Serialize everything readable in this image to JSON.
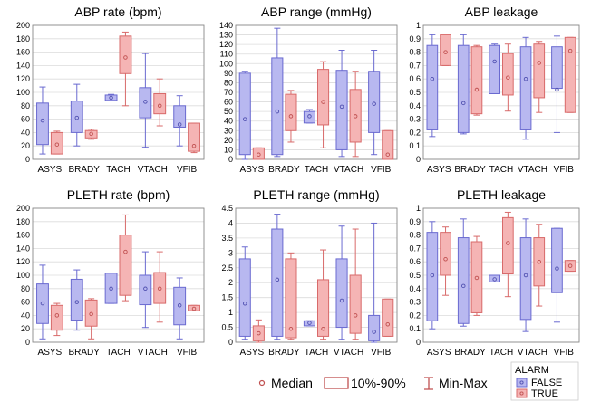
{
  "colors": {
    "false_fill": "#b8b8f0",
    "false_stroke": "#6a6ad0",
    "true_fill": "#f5b4b4",
    "true_stroke": "#d86a6a",
    "grid": "#dcdcdc",
    "axis": "#888888"
  },
  "legend": {
    "median_label": "Median",
    "range_label": "10%-90%",
    "minmax_label": "Min-Max",
    "alarm_title": "ALARM",
    "false_label": "FALSE",
    "true_label": "TRUE"
  },
  "chart_data": [
    {
      "type": "box",
      "title": "ABP rate (bpm)",
      "categories": [
        "ASYS",
        "BRADY",
        "TACH",
        "VTACH",
        "VFIB"
      ],
      "ylim": [
        0,
        200
      ],
      "yticks": [
        0,
        20,
        40,
        60,
        80,
        100,
        120,
        140,
        160,
        180,
        200
      ],
      "series": [
        {
          "name": "FALSE",
          "boxes": [
            {
              "min": 8,
              "p10": 22,
              "median": 58,
              "p90": 84,
              "max": 108
            },
            {
              "min": 20,
              "p10": 40,
              "median": 62,
              "p90": 87,
              "max": 112
            },
            {
              "min": 88,
              "p10": 88,
              "median": 92,
              "p90": 96,
              "max": 97
            },
            {
              "min": 18,
              "p10": 62,
              "median": 86,
              "p90": 107,
              "max": 158
            },
            {
              "min": 20,
              "p10": 48,
              "median": 52,
              "p90": 80,
              "max": 95
            }
          ]
        },
        {
          "name": "TRUE",
          "boxes": [
            {
              "min": 8,
              "p10": 8,
              "median": 22,
              "p90": 40,
              "max": 42
            },
            {
              "min": 30,
              "p10": 32,
              "median": 38,
              "p90": 43,
              "max": 45
            },
            {
              "min": 80,
              "p10": 128,
              "median": 152,
              "p90": 184,
              "max": 190
            },
            {
              "min": 50,
              "p10": 68,
              "median": 80,
              "p90": 98,
              "max": 120
            },
            {
              "min": 10,
              "p10": 12,
              "median": 20,
              "p90": 54,
              "max": 54
            }
          ]
        }
      ]
    },
    {
      "type": "box",
      "title": "ABP range (mmHg)",
      "categories": [
        "ASYS",
        "BRADY",
        "TACH",
        "VTACH",
        "VFIB"
      ],
      "ylim": [
        0,
        140
      ],
      "yticks": [
        0,
        10,
        20,
        30,
        40,
        50,
        60,
        70,
        80,
        90,
        100,
        110,
        120,
        130,
        140
      ],
      "series": [
        {
          "name": "FALSE",
          "boxes": [
            {
              "min": 0,
              "p10": 5,
              "median": 42,
              "p90": 90,
              "max": 92
            },
            {
              "min": 3,
              "p10": 5,
              "median": 50,
              "p90": 106,
              "max": 137
            },
            {
              "min": 38,
              "p10": 38,
              "median": 45,
              "p90": 50,
              "max": 52
            },
            {
              "min": 3,
              "p10": 10,
              "median": 55,
              "p90": 93,
              "max": 114
            },
            {
              "min": 5,
              "p10": 28,
              "median": 58,
              "p90": 92,
              "max": 114
            }
          ]
        },
        {
          "name": "TRUE",
          "boxes": [
            {
              "min": 0,
              "p10": 0,
              "median": 5,
              "p90": 12,
              "max": 12
            },
            {
              "min": 18,
              "p10": 30,
              "median": 45,
              "p90": 68,
              "max": 72
            },
            {
              "min": 12,
              "p10": 36,
              "median": 60,
              "p90": 94,
              "max": 102
            },
            {
              "min": 3,
              "p10": 18,
              "median": 45,
              "p90": 73,
              "max": 92
            },
            {
              "min": 0,
              "p10": 0,
              "median": 5,
              "p90": 30,
              "max": 30
            }
          ]
        }
      ]
    },
    {
      "type": "box",
      "title": "ABP leakage",
      "categories": [
        "ASYS",
        "BRADY",
        "TACH",
        "VTACH",
        "VFIB"
      ],
      "ylim": [
        0,
        1
      ],
      "yticks": [
        0,
        0.1,
        0.2,
        0.3,
        0.4,
        0.5,
        0.6,
        0.7,
        0.8,
        0.9,
        1
      ],
      "series": [
        {
          "name": "FALSE",
          "boxes": [
            {
              "min": 0.17,
              "p10": 0.22,
              "median": 0.6,
              "p90": 0.85,
              "max": 0.93
            },
            {
              "min": 0.19,
              "p10": 0.2,
              "median": 0.42,
              "p90": 0.85,
              "max": 0.93
            },
            {
              "min": 0.49,
              "p10": 0.49,
              "median": 0.73,
              "p90": 0.85,
              "max": 0.86
            },
            {
              "min": 0.15,
              "p10": 0.22,
              "median": 0.6,
              "p90": 0.84,
              "max": 0.91
            },
            {
              "min": 0.2,
              "p10": 0.53,
              "median": 0.52,
              "p90": 0.84,
              "max": 0.92
            }
          ]
        },
        {
          "name": "TRUE",
          "boxes": [
            {
              "min": 0.7,
              "p10": 0.7,
              "median": 0.8,
              "p90": 0.93,
              "max": 0.93
            },
            {
              "min": 0.33,
              "p10": 0.34,
              "median": 0.52,
              "p90": 0.84,
              "max": 0.85
            },
            {
              "min": 0.36,
              "p10": 0.48,
              "median": 0.61,
              "p90": 0.79,
              "max": 0.86
            },
            {
              "min": 0.35,
              "p10": 0.46,
              "median": 0.72,
              "p90": 0.86,
              "max": 0.88
            },
            {
              "min": 0.35,
              "p10": 0.35,
              "median": 0.81,
              "p90": 0.91,
              "max": 0.91
            }
          ]
        }
      ]
    },
    {
      "type": "box",
      "title": "PLETH rate (bpm)",
      "categories": [
        "ASYS",
        "BRADY",
        "TACH",
        "VTACH",
        "VFIB"
      ],
      "ylim": [
        0,
        200
      ],
      "yticks": [
        0,
        20,
        40,
        60,
        80,
        100,
        120,
        140,
        160,
        180,
        200
      ],
      "series": [
        {
          "name": "FALSE",
          "boxes": [
            {
              "min": 5,
              "p10": 28,
              "median": 58,
              "p90": 87,
              "max": 115
            },
            {
              "min": 18,
              "p10": 33,
              "median": 60,
              "p90": 94,
              "max": 108
            },
            {
              "min": 58,
              "p10": 58,
              "median": 80,
              "p90": 103,
              "max": 103
            },
            {
              "min": 22,
              "p10": 56,
              "median": 80,
              "p90": 100,
              "max": 135
            },
            {
              "min": 5,
              "p10": 26,
              "median": 55,
              "p90": 82,
              "max": 96
            }
          ]
        },
        {
          "name": "TRUE",
          "boxes": [
            {
              "min": 10,
              "p10": 18,
              "median": 40,
              "p90": 55,
              "max": 58
            },
            {
              "min": 5,
              "p10": 24,
              "median": 42,
              "p90": 63,
              "max": 65
            },
            {
              "min": 62,
              "p10": 70,
              "median": 135,
              "p90": 160,
              "max": 190
            },
            {
              "min": 30,
              "p10": 58,
              "median": 80,
              "p90": 104,
              "max": 135
            },
            {
              "min": 47,
              "p10": 47,
              "median": 50,
              "p90": 55,
              "max": 55
            }
          ]
        }
      ]
    },
    {
      "type": "box",
      "title": "PLETH range (mmHg)",
      "categories": [
        "ASYS",
        "BRADY",
        "TACH",
        "VTACH",
        "VFIB"
      ],
      "ylim": [
        0,
        4.5
      ],
      "yticks": [
        0,
        0.5,
        1,
        1.5,
        2,
        2.5,
        3,
        3.5,
        4,
        4.5
      ],
      "series": [
        {
          "name": "FALSE",
          "boxes": [
            {
              "min": 0.1,
              "p10": 0.2,
              "median": 1.3,
              "p90": 2.8,
              "max": 3.2
            },
            {
              "min": 0.1,
              "p10": 0.2,
              "median": 2.1,
              "p90": 3.8,
              "max": 4.3
            },
            {
              "min": 0.55,
              "p10": 0.55,
              "median": 0.65,
              "p90": 0.72,
              "max": 0.72
            },
            {
              "min": 0.1,
              "p10": 0.5,
              "median": 1.4,
              "p90": 2.8,
              "max": 3.9
            },
            {
              "min": 0.0,
              "p10": 0.05,
              "median": 0.35,
              "p90": 0.9,
              "max": 4.0
            }
          ]
        },
        {
          "name": "TRUE",
          "boxes": [
            {
              "min": 0.0,
              "p10": 0.05,
              "median": 0.3,
              "p90": 0.55,
              "max": 0.75
            },
            {
              "min": 0.1,
              "p10": 0.15,
              "median": 0.45,
              "p90": 2.8,
              "max": 3.0
            },
            {
              "min": 0.1,
              "p10": 0.2,
              "median": 0.45,
              "p90": 2.1,
              "max": 3.1
            },
            {
              "min": 0.1,
              "p10": 0.3,
              "median": 0.9,
              "p90": 2.25,
              "max": 3.8
            },
            {
              "min": 0.2,
              "p10": 0.2,
              "median": 0.6,
              "p90": 1.45,
              "max": 1.45
            }
          ]
        }
      ]
    },
    {
      "type": "box",
      "title": "PLETH leakage",
      "categories": [
        "ASYS",
        "BRADY",
        "TACH",
        "VTACH",
        "VFIB"
      ],
      "ylim": [
        0,
        1
      ],
      "yticks": [
        0,
        0.1,
        0.2,
        0.3,
        0.4,
        0.5,
        0.6,
        0.7,
        0.8,
        0.9,
        1
      ],
      "series": [
        {
          "name": "FALSE",
          "boxes": [
            {
              "min": 0.1,
              "p10": 0.16,
              "median": 0.5,
              "p90": 0.82,
              "max": 0.9
            },
            {
              "min": 0.12,
              "p10": 0.14,
              "median": 0.42,
              "p90": 0.78,
              "max": 0.92
            },
            {
              "min": 0.45,
              "p10": 0.45,
              "median": 0.47,
              "p90": 0.5,
              "max": 0.5
            },
            {
              "min": 0.08,
              "p10": 0.17,
              "median": 0.5,
              "p90": 0.78,
              "max": 0.92
            },
            {
              "min": 0.15,
              "p10": 0.37,
              "median": 0.55,
              "p90": 0.85,
              "max": 0.85
            }
          ]
        },
        {
          "name": "TRUE",
          "boxes": [
            {
              "min": 0.35,
              "p10": 0.5,
              "median": 0.62,
              "p90": 0.82,
              "max": 0.86
            },
            {
              "min": 0.2,
              "p10": 0.22,
              "median": 0.48,
              "p90": 0.75,
              "max": 0.79
            },
            {
              "min": 0.34,
              "p10": 0.51,
              "median": 0.74,
              "p90": 0.93,
              "max": 0.97
            },
            {
              "min": 0.27,
              "p10": 0.42,
              "median": 0.6,
              "p90": 0.78,
              "max": 0.88
            },
            {
              "min": 0.53,
              "p10": 0.53,
              "median": 0.57,
              "p90": 0.61,
              "max": 0.61
            }
          ]
        }
      ]
    }
  ]
}
